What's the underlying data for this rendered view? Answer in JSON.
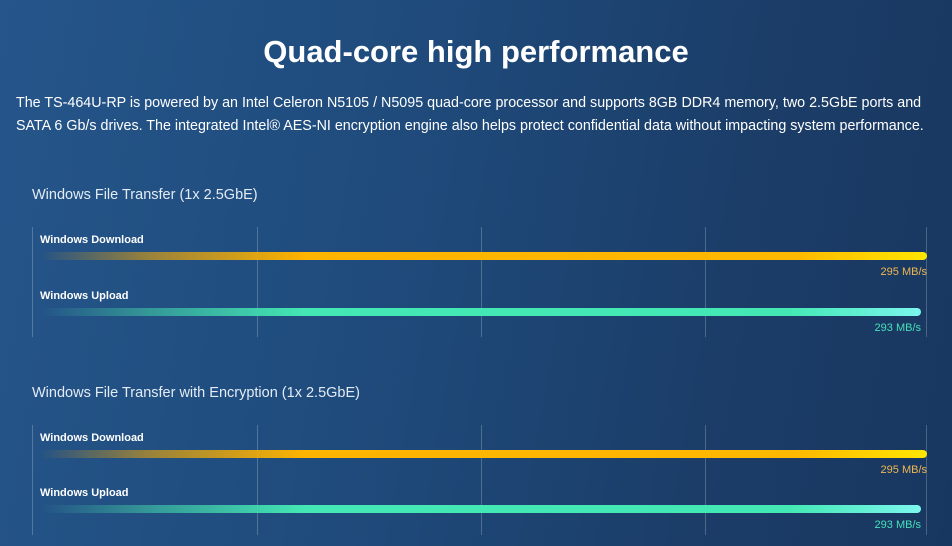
{
  "title": "Quad-core high performance",
  "description": "The TS-464U-RP is powered by an Intel Celeron N5105 / N5095 quad-core processor and supports 8GB DDR4 memory, two 2.5GbE ports and SATA 6 Gb/s drives. The integrated Intel® AES-NI encryption engine also helps protect confidential data without impacting system performance.",
  "sections": [
    {
      "title": "Windows File Transfer (1x 2.5GbE)",
      "rows": [
        {
          "label": "Windows Download",
          "value": "295 MB/s",
          "mbps": 295,
          "color": "#ffb400"
        },
        {
          "label": "Windows Upload",
          "value": "293 MB/s",
          "mbps": 293,
          "color": "#44e8b4"
        }
      ]
    },
    {
      "title": "Windows File Transfer with Encryption (1x 2.5GbE)",
      "rows": [
        {
          "label": "Windows Download",
          "value": "295 MB/s",
          "mbps": 295,
          "color": "#ffb400"
        },
        {
          "label": "Windows Upload",
          "value": "293 MB/s",
          "mbps": 293,
          "color": "#44e8b4"
        }
      ]
    }
  ]
}
